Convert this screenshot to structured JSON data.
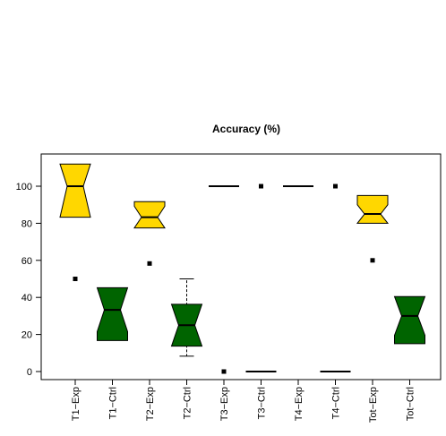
{
  "chart_data": {
    "type": "boxplot",
    "title": "Accuracy (%)",
    "notched": true,
    "ylim": [
      0,
      100
    ],
    "yticks": [
      0,
      20,
      40,
      60,
      80,
      100
    ],
    "colors": {
      "Exp": "#FFD700",
      "Ctrl": "#006400"
    },
    "grid": false,
    "categories": [
      "T1−Exp",
      "T1−Ctrl",
      "T2−Exp",
      "T2−Ctrl",
      "T3−Exp",
      "T3−Ctrl",
      "T4−Exp",
      "T4−Ctrl",
      "Tot−Exp",
      "Tot−Ctrl"
    ],
    "boxes": [
      {
        "group": "Exp",
        "wlo": 83.3,
        "q1": 83.3,
        "med": 100,
        "q3": 100,
        "whi": 100,
        "nlo": 83.3,
        "nhi": 112,
        "outliers": [
          50
        ]
      },
      {
        "group": "Ctrl",
        "wlo": 16.7,
        "q1": 16.7,
        "med": 33.3,
        "q3": 33.3,
        "whi": 33.3,
        "nlo": 21.5,
        "nhi": 45.2,
        "outliers": []
      },
      {
        "group": "Exp",
        "wlo": 83.3,
        "q1": 83.3,
        "med": 83.3,
        "q3": 91.7,
        "whi": 91.7,
        "nlo": 77.5,
        "nhi": 89.2,
        "outliers": [
          58.3
        ]
      },
      {
        "group": "Ctrl",
        "wlo": 8.3,
        "q1": 16.7,
        "med": 25,
        "q3": 33.3,
        "whi": 50,
        "nlo": 13.7,
        "nhi": 36.3,
        "outliers": []
      },
      {
        "group": "Exp",
        "wlo": 100,
        "q1": 100,
        "med": 100,
        "q3": 100,
        "whi": 100,
        "nlo": 100,
        "nhi": 100,
        "outliers": [
          0
        ]
      },
      {
        "group": "Ctrl",
        "wlo": 0,
        "q1": 0,
        "med": 0,
        "q3": 0,
        "whi": 0,
        "nlo": 0,
        "nhi": 0,
        "outliers": [
          100
        ]
      },
      {
        "group": "Exp",
        "wlo": 100,
        "q1": 100,
        "med": 100,
        "q3": 100,
        "whi": 100,
        "nlo": 100,
        "nhi": 100,
        "outliers": []
      },
      {
        "group": "Ctrl",
        "wlo": 0,
        "q1": 0,
        "med": 0,
        "q3": 0,
        "whi": 0,
        "nlo": 0,
        "nhi": 0,
        "outliers": [
          100
        ]
      },
      {
        "group": "Exp",
        "wlo": 85,
        "q1": 85,
        "med": 85,
        "q3": 95,
        "whi": 95,
        "nlo": 80,
        "nhi": 90,
        "outliers": [
          60
        ]
      },
      {
        "group": "Ctrl",
        "wlo": 15,
        "q1": 15,
        "med": 30,
        "q3": 30,
        "whi": 40,
        "nlo": 19.5,
        "nhi": 40.5,
        "outliers": []
      }
    ]
  }
}
